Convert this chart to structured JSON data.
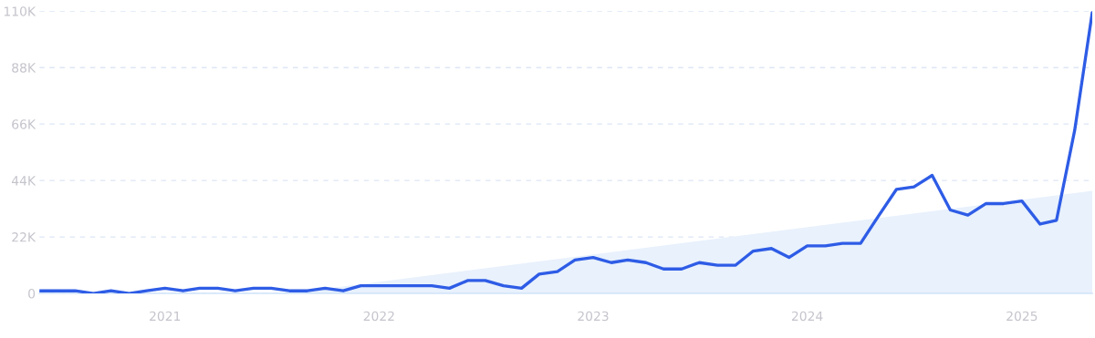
{
  "chart_data": {
    "type": "line",
    "x": [
      "2020-06",
      "2020-07",
      "2020-08",
      "2020-09",
      "2020-10",
      "2020-11",
      "2020-12",
      "2021-01",
      "2021-02",
      "2021-03",
      "2021-04",
      "2021-05",
      "2021-06",
      "2021-07",
      "2021-08",
      "2021-09",
      "2021-10",
      "2021-11",
      "2021-12",
      "2022-01",
      "2022-02",
      "2022-03",
      "2022-04",
      "2022-05",
      "2022-06",
      "2022-07",
      "2022-08",
      "2022-09",
      "2022-10",
      "2022-11",
      "2022-12",
      "2023-01",
      "2023-02",
      "2023-03",
      "2023-04",
      "2023-05",
      "2023-06",
      "2023-07",
      "2023-08",
      "2023-09",
      "2023-10",
      "2023-11",
      "2023-12",
      "2024-01",
      "2024-02",
      "2024-03",
      "2024-04",
      "2024-05",
      "2024-06",
      "2024-07",
      "2024-08",
      "2024-09",
      "2024-10",
      "2024-11",
      "2024-12",
      "2025-01",
      "2025-02",
      "2025-03",
      "2025-04",
      "2025-05"
    ],
    "series": [
      {
        "type": "area",
        "color": "#e8f1fc",
        "x": [
          "2021-08",
          "2025-05"
        ],
        "values": [
          0,
          40000
        ]
      },
      {
        "color": "#2e5ce6",
        "values": [
          1000,
          1000,
          1000,
          0,
          1000,
          0,
          1000,
          2000,
          1000,
          2000,
          2000,
          1000,
          2000,
          2000,
          1000,
          1000,
          2000,
          1000,
          3000,
          3000,
          3000,
          3000,
          3000,
          2000,
          5000,
          5000,
          3000,
          2000,
          7500,
          8500,
          13000,
          14000,
          12000,
          13000,
          12000,
          9500,
          9500,
          12000,
          11000,
          11000,
          16500,
          17500,
          14000,
          18500,
          18500,
          19500,
          19500,
          30000,
          40500,
          41500,
          46000,
          32500,
          30500,
          35000,
          35000,
          36000,
          27000,
          28500,
          63500,
          109500
        ]
      }
    ],
    "xlim": [
      "2020-06",
      "2025-05"
    ],
    "xticks": [
      "2021",
      "2022",
      "2023",
      "2024",
      "2025"
    ],
    "ylim": [
      0,
      110000
    ],
    "yticks": [
      {
        "value": 0,
        "label": "0"
      },
      {
        "value": 22000,
        "label": "22K"
      },
      {
        "value": 44000,
        "label": "44K"
      },
      {
        "value": 66000,
        "label": "66K"
      },
      {
        "value": 88000,
        "label": "88K"
      },
      {
        "value": 110000,
        "label": "110K"
      }
    ],
    "grid": "y",
    "line_style": "solid",
    "marker": "none"
  }
}
